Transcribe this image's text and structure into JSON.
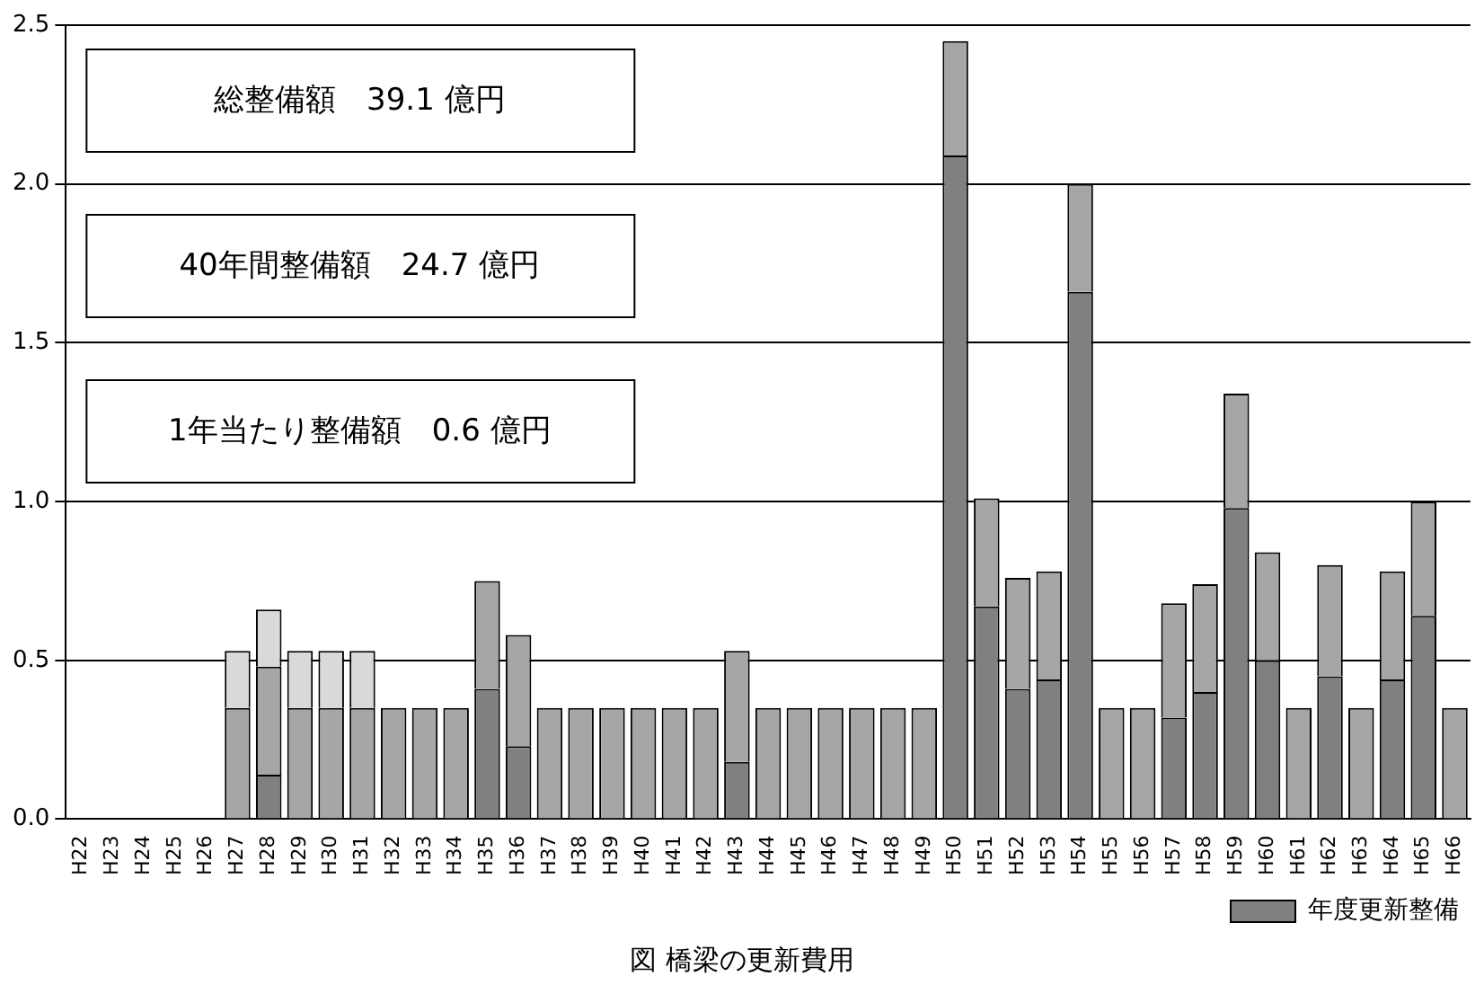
{
  "chart_data": {
    "type": "bar",
    "title": "図 橋梁の更新費用",
    "stacked": true,
    "grid": "y",
    "legend": "bottom right",
    "categories": [
      "H22",
      "H23",
      "H24",
      "H25",
      "H26",
      "H27",
      "H28",
      "H29",
      "H30",
      "H31",
      "H32",
      "H33",
      "H34",
      "H35",
      "H36",
      "H37",
      "H38",
      "H39",
      "H40",
      "H41",
      "H42",
      "H43",
      "H44",
      "H45",
      "H46",
      "H47",
      "H48",
      "H49",
      "H50",
      "H51",
      "H52",
      "H53",
      "H54",
      "H55",
      "H56",
      "H57",
      "H58",
      "H59",
      "H60",
      "H61",
      "H62",
      "H63",
      "H64",
      "H65",
      "H66"
    ],
    "ylim": [
      0,
      2.5
    ],
    "yticks": [
      {
        "value": 0,
        "label": "0.0"
      },
      0.5,
      {
        "value": 1,
        "label": "1.0"
      },
      1.5,
      {
        "value": 2,
        "label": "2.0"
      },
      2.5
    ],
    "annotations": [
      "総整備額　39.1 億円",
      "40年間整備額　24.7 億円",
      "1年当たり整備額　0.6 億円"
    ],
    "series": [
      {
        "name": "年度更新整備",
        "color": "#808080",
        "values": [
          null,
          null,
          null,
          null,
          null,
          null,
          0.14,
          null,
          null,
          null,
          null,
          null,
          null,
          0.41,
          0.23,
          null,
          null,
          null,
          null,
          null,
          null,
          0.18,
          null,
          null,
          null,
          null,
          null,
          null,
          2.09,
          0.67,
          0.41,
          0.44,
          1.66,
          null,
          null,
          0.32,
          0.4,
          0.98,
          0.5,
          null,
          0.45,
          null,
          0.44,
          0.64,
          null
        ]
      },
      {
        "color": "#a6a6a6",
        "values": [
          null,
          null,
          null,
          null,
          null,
          0.35,
          0.34,
          0.35,
          0.35,
          0.35,
          0.35,
          0.35,
          0.35,
          0.34,
          0.35,
          0.35,
          0.35,
          0.35,
          0.35,
          0.35,
          0.35,
          0.35,
          0.35,
          0.35,
          0.35,
          0.35,
          0.35,
          0.35,
          0.36,
          0.34,
          0.35,
          0.34,
          0.34,
          0.35,
          0.35,
          0.36,
          0.34,
          0.36,
          0.34,
          0.35,
          0.35,
          0.35,
          0.34,
          0.36,
          0.35
        ]
      },
      {
        "color": "#d9d9d9",
        "values": [
          null,
          null,
          null,
          null,
          null,
          0.18,
          0.18,
          0.18,
          0.18,
          0.18,
          null,
          null,
          null,
          null,
          null,
          null,
          null,
          null,
          null,
          null,
          null,
          null,
          null,
          null,
          null,
          null,
          null,
          null,
          null,
          null,
          null,
          null,
          null,
          null,
          null,
          null,
          null,
          null,
          null,
          null,
          null,
          null,
          null,
          null,
          null
        ]
      }
    ]
  }
}
